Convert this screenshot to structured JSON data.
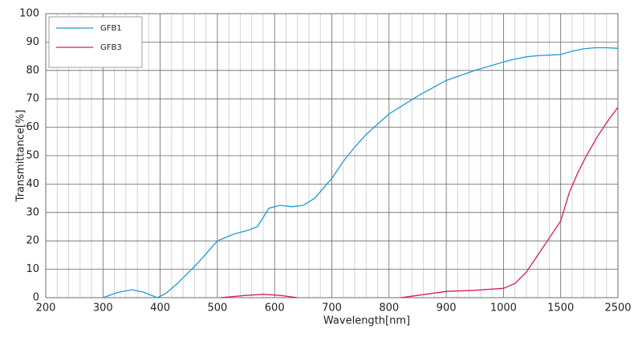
{
  "chart_data": {
    "type": "line",
    "x_label": "Wavelength[nm]",
    "y_label": "Transmittance[%]",
    "xlim": [
      200,
      2500
    ],
    "xticks": [
      200,
      300,
      400,
      500,
      600,
      700,
      800,
      900,
      1000,
      1500,
      2500
    ],
    "ylim": [
      0,
      100
    ],
    "yticks": [
      0,
      10,
      20,
      30,
      40,
      50,
      60,
      70,
      80,
      90,
      100
    ],
    "grid": true,
    "legend": "upper left",
    "series": [
      {
        "name": "GFB1",
        "color": "#1e9bd7",
        "x": [
          300,
          325,
          350,
          370,
          395,
          410,
          430,
          465,
          500,
          530,
          555,
          570,
          590,
          610,
          630,
          650,
          670,
          700,
          720,
          740,
          760,
          800,
          850,
          900,
          950,
          1000,
          1100,
          1200,
          1300,
          1400,
          1500,
          1700,
          1900,
          2100,
          2300,
          2500
        ],
        "values": [
          0,
          1.8,
          2.8,
          2,
          0,
          1.5,
          5,
          12,
          20,
          22.5,
          23.8,
          25,
          31.5,
          32.5,
          32,
          32.5,
          35,
          42,
          48,
          53,
          57.5,
          64.7,
          71,
          76.5,
          80,
          83,
          84,
          84.8,
          85.2,
          85.4,
          85.6,
          86.8,
          87.6,
          88,
          88,
          87.8
        ]
      },
      {
        "name": "GFB3",
        "color": "#d81b6a",
        "x": [
          505,
          550,
          580,
          610,
          640,
          820,
          850,
          900,
          950,
          1000,
          1100,
          1200,
          1300,
          1400,
          1500,
          1650,
          1800,
          1950,
          2150,
          2350,
          2500
        ],
        "values": [
          0,
          0.8,
          1.2,
          0.8,
          0,
          0,
          0.8,
          2.2,
          2.6,
          3.3,
          5,
          9,
          15,
          21,
          27,
          37,
          44,
          50,
          57,
          63,
          67
        ]
      }
    ]
  }
}
